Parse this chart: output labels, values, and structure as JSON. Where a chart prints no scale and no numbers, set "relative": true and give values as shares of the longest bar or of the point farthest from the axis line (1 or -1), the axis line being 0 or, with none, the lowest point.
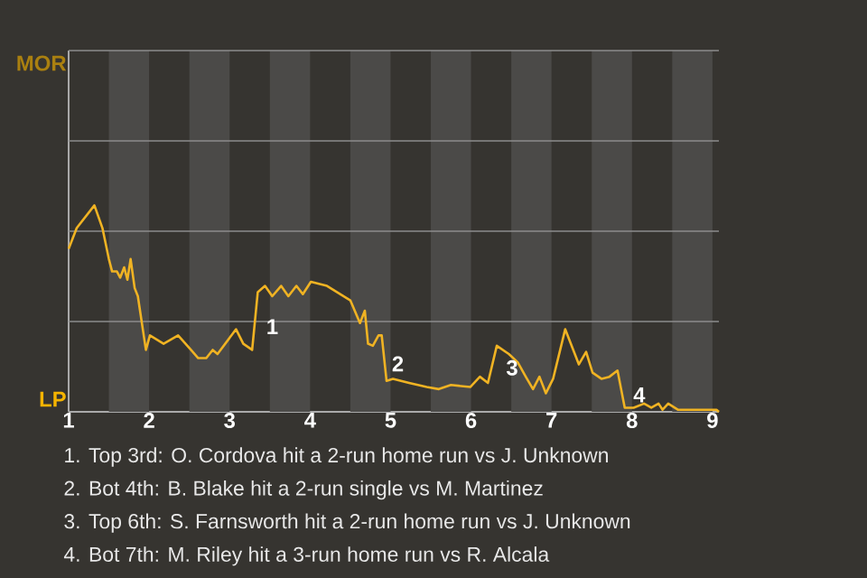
{
  "chart_data": {
    "type": "line",
    "relative": true,
    "x": [
      1,
      1.1,
      1.32,
      1.42,
      1.5,
      1.54,
      1.6,
      1.64,
      1.69,
      1.73,
      1.77,
      1.82,
      1.86,
      1.96,
      2.01,
      2.18,
      2.36,
      2.52,
      2.61,
      2.71,
      2.79,
      2.85,
      3.08,
      3.17,
      3.28,
      3.35,
      3.44,
      3.53,
      3.64,
      3.73,
      3.83,
      3.91,
      4.01,
      4.21,
      4.5,
      4.62,
      4.68,
      4.72,
      4.78,
      4.85,
      4.89,
      4.95,
      5.03,
      5.23,
      5.45,
      5.6,
      5.75,
      5.99,
      6.11,
      6.21,
      6.32,
      6.47,
      6.58,
      6.68,
      6.77,
      6.85,
      6.93,
      7.02,
      7.17,
      7.34,
      7.43,
      7.51,
      7.62,
      7.72,
      7.82,
      7.91,
      8.02,
      8.15,
      8.24,
      8.33,
      8.38,
      8.45,
      8.57,
      9.05,
      9.08
    ],
    "series": [
      {
        "color": "#f0b323",
        "values": [
          0.79,
          0.89,
          1,
          0.89,
          0.74,
          0.68,
          0.68,
          0.65,
          0.7,
          0.64,
          0.74,
          0.6,
          0.56,
          0.3,
          0.37,
          0.33,
          0.37,
          0.3,
          0.26,
          0.26,
          0.3,
          0.28,
          0.4,
          0.33,
          0.3,
          0.58,
          0.61,
          0.56,
          0.61,
          0.56,
          0.61,
          0.57,
          0.63,
          0.61,
          0.54,
          0.43,
          0.49,
          0.33,
          0.32,
          0.37,
          0.37,
          0.15,
          0.16,
          0.14,
          0.12,
          0.11,
          0.13,
          0.12,
          0.17,
          0.14,
          0.32,
          0.28,
          0.24,
          0.17,
          0.11,
          0.17,
          0.09,
          0.16,
          0.4,
          0.23,
          0.29,
          0.19,
          0.16,
          0.17,
          0.2,
          0.02,
          0.02,
          0.04,
          0.02,
          0.04,
          0.01,
          0.04,
          0.01,
          0.01,
          0
        ]
      }
    ],
    "xlim": [
      1,
      9.08
    ],
    "xticks": [
      1,
      2,
      3,
      4,
      5,
      6,
      7,
      8,
      9
    ],
    "ref_lines": [
      {
        "axis": "y",
        "value": 0.4375,
        "color": "#8c8c8c"
      },
      {
        "axis": "y",
        "value": 0.875,
        "color": "#8c8c8c"
      },
      {
        "axis": "y",
        "value": 1.3125,
        "color": "#8c8c8c"
      },
      {
        "axis": "y",
        "value": 1.75,
        "color": "#8c8c8c"
      }
    ],
    "bands": [
      {
        "axis": "x",
        "from": 1.5,
        "to": 2,
        "color": "#4b4a48"
      },
      {
        "axis": "x",
        "from": 2.5,
        "to": 3,
        "color": "#4b4a48"
      },
      {
        "axis": "x",
        "from": 3.5,
        "to": 4,
        "color": "#4b4a48"
      },
      {
        "axis": "x",
        "from": 4.5,
        "to": 5,
        "color": "#4b4a48"
      },
      {
        "axis": "x",
        "from": 5.5,
        "to": 6,
        "color": "#4b4a48"
      },
      {
        "axis": "x",
        "from": 6.5,
        "to": 7,
        "color": "#4b4a48"
      },
      {
        "axis": "x",
        "from": 7.5,
        "to": 8,
        "color": "#4b4a48"
      },
      {
        "axis": "x",
        "from": 8.5,
        "to": 9,
        "color": "#4b4a48"
      }
    ],
    "annotations": [
      "MOR",
      "LP",
      {
        "text": "1",
        "x": 3.44,
        "y": 0.37
      },
      {
        "text": "2",
        "x": 5,
        "y": 0.19
      },
      {
        "text": "3",
        "x": 6.42,
        "y": 0.17
      },
      {
        "text": "4",
        "x": 8,
        "y": 0.04
      },
      "1. Top 3rd: O. Cordova hit a 2-run home run vs J. Unknown",
      "2. Bot 4th: B. Blake hit a 2-run single vs M. Martinez",
      "3. Top 6th: S. Farnsworth hit a 2-run home run vs J. Unknown",
      "4. Bot 7th: M. Riley hit a 3-run home run vs R. Alcala"
    ]
  }
}
